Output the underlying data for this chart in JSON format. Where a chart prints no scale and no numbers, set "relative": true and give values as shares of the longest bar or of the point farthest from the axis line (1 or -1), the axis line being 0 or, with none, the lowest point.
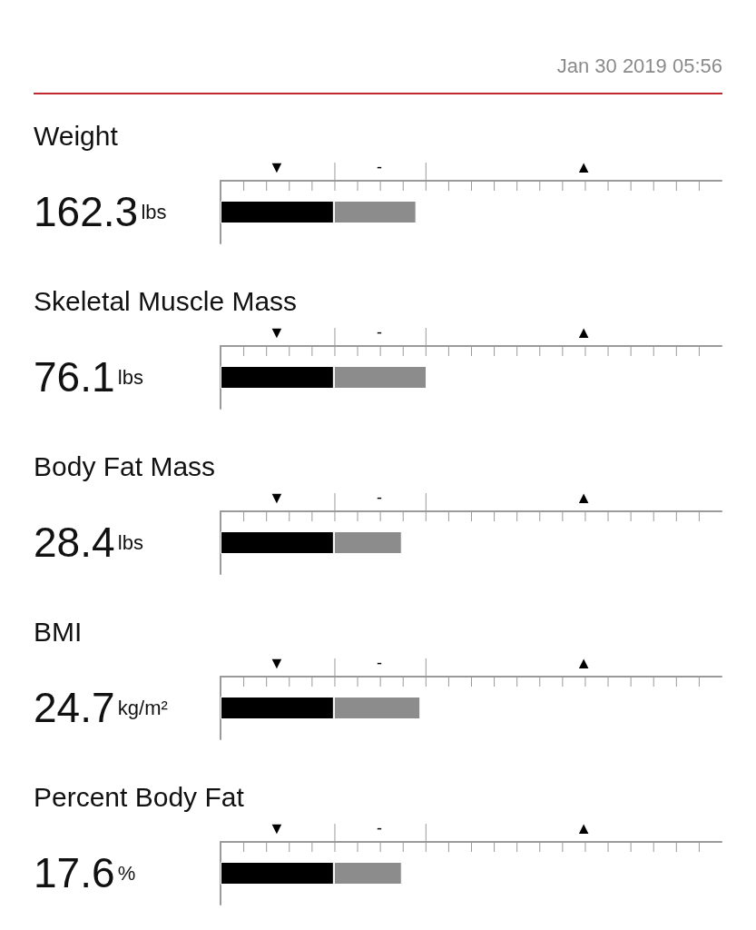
{
  "chart_data": {
    "type": "bar",
    "orientation": "horizontal",
    "stacked": true,
    "relative": true,
    "categories": [
      null,
      null,
      null,
      null,
      null
    ],
    "series": [
      {
        "color": "#000000",
        "values": [
          0.55,
          0.55,
          0.55,
          0.55,
          0.55
        ]
      },
      {
        "color": "#8c8c8c",
        "values": [
          0.4,
          0.45,
          0.33,
          0.42,
          0.33
        ]
      }
    ],
    "annotations": [
      "Weight",
      "162.3",
      "lbs",
      "▼",
      "-",
      "▲",
      "Skeletal Muscle Mass",
      "76.1",
      "lbs",
      "▼",
      "-",
      "▲",
      "Body Fat Mass",
      "28.4",
      "lbs",
      "▼",
      "-",
      "▲",
      "BMI",
      "24.7",
      "kg/m²",
      "▼",
      "-",
      "▲",
      "Percent Body Fat",
      "17.6",
      "%",
      "▼",
      "-",
      "▲",
      "Jan 30 2019 05:56"
    ]
  }
}
